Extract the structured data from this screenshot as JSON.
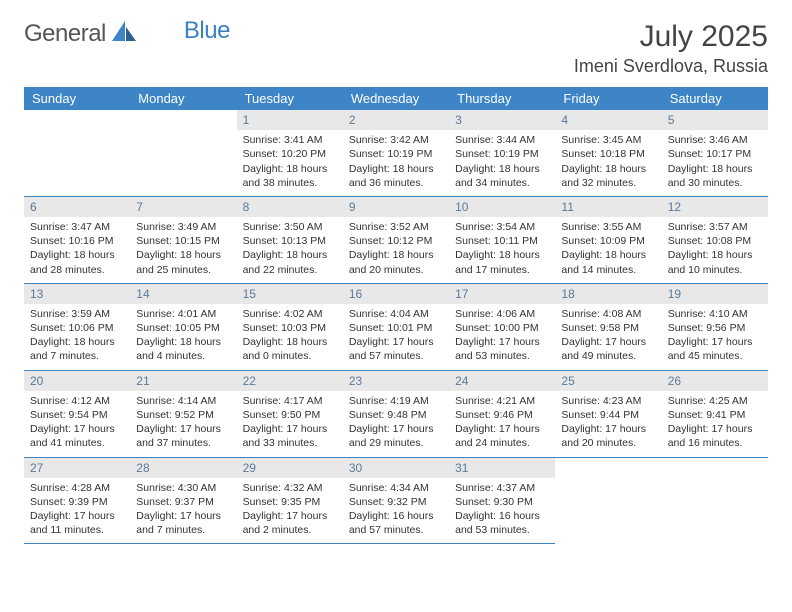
{
  "logo": {
    "text1": "General",
    "text2": "Blue"
  },
  "title": "July 2025",
  "location": "Imeni Sverdlova, Russia",
  "calendar": {
    "header_bg": "#3d85c6",
    "header_color": "#ffffff",
    "daynum_bg": "#e8e8e8",
    "daynum_color": "#5a7a9a",
    "border_color": "#3d85c6",
    "days_of_week": [
      "Sunday",
      "Monday",
      "Tuesday",
      "Wednesday",
      "Thursday",
      "Friday",
      "Saturday"
    ],
    "weeks": [
      [
        {
          "n": "",
          "sr": "",
          "ss": "",
          "dl1": "",
          "dl2": ""
        },
        {
          "n": "",
          "sr": "",
          "ss": "",
          "dl1": "",
          "dl2": ""
        },
        {
          "n": "1",
          "sr": "Sunrise: 3:41 AM",
          "ss": "Sunset: 10:20 PM",
          "dl1": "Daylight: 18 hours",
          "dl2": "and 38 minutes."
        },
        {
          "n": "2",
          "sr": "Sunrise: 3:42 AM",
          "ss": "Sunset: 10:19 PM",
          "dl1": "Daylight: 18 hours",
          "dl2": "and 36 minutes."
        },
        {
          "n": "3",
          "sr": "Sunrise: 3:44 AM",
          "ss": "Sunset: 10:19 PM",
          "dl1": "Daylight: 18 hours",
          "dl2": "and 34 minutes."
        },
        {
          "n": "4",
          "sr": "Sunrise: 3:45 AM",
          "ss": "Sunset: 10:18 PM",
          "dl1": "Daylight: 18 hours",
          "dl2": "and 32 minutes."
        },
        {
          "n": "5",
          "sr": "Sunrise: 3:46 AM",
          "ss": "Sunset: 10:17 PM",
          "dl1": "Daylight: 18 hours",
          "dl2": "and 30 minutes."
        }
      ],
      [
        {
          "n": "6",
          "sr": "Sunrise: 3:47 AM",
          "ss": "Sunset: 10:16 PM",
          "dl1": "Daylight: 18 hours",
          "dl2": "and 28 minutes."
        },
        {
          "n": "7",
          "sr": "Sunrise: 3:49 AM",
          "ss": "Sunset: 10:15 PM",
          "dl1": "Daylight: 18 hours",
          "dl2": "and 25 minutes."
        },
        {
          "n": "8",
          "sr": "Sunrise: 3:50 AM",
          "ss": "Sunset: 10:13 PM",
          "dl1": "Daylight: 18 hours",
          "dl2": "and 22 minutes."
        },
        {
          "n": "9",
          "sr": "Sunrise: 3:52 AM",
          "ss": "Sunset: 10:12 PM",
          "dl1": "Daylight: 18 hours",
          "dl2": "and 20 minutes."
        },
        {
          "n": "10",
          "sr": "Sunrise: 3:54 AM",
          "ss": "Sunset: 10:11 PM",
          "dl1": "Daylight: 18 hours",
          "dl2": "and 17 minutes."
        },
        {
          "n": "11",
          "sr": "Sunrise: 3:55 AM",
          "ss": "Sunset: 10:09 PM",
          "dl1": "Daylight: 18 hours",
          "dl2": "and 14 minutes."
        },
        {
          "n": "12",
          "sr": "Sunrise: 3:57 AM",
          "ss": "Sunset: 10:08 PM",
          "dl1": "Daylight: 18 hours",
          "dl2": "and 10 minutes."
        }
      ],
      [
        {
          "n": "13",
          "sr": "Sunrise: 3:59 AM",
          "ss": "Sunset: 10:06 PM",
          "dl1": "Daylight: 18 hours",
          "dl2": "and 7 minutes."
        },
        {
          "n": "14",
          "sr": "Sunrise: 4:01 AM",
          "ss": "Sunset: 10:05 PM",
          "dl1": "Daylight: 18 hours",
          "dl2": "and 4 minutes."
        },
        {
          "n": "15",
          "sr": "Sunrise: 4:02 AM",
          "ss": "Sunset: 10:03 PM",
          "dl1": "Daylight: 18 hours",
          "dl2": "and 0 minutes."
        },
        {
          "n": "16",
          "sr": "Sunrise: 4:04 AM",
          "ss": "Sunset: 10:01 PM",
          "dl1": "Daylight: 17 hours",
          "dl2": "and 57 minutes."
        },
        {
          "n": "17",
          "sr": "Sunrise: 4:06 AM",
          "ss": "Sunset: 10:00 PM",
          "dl1": "Daylight: 17 hours",
          "dl2": "and 53 minutes."
        },
        {
          "n": "18",
          "sr": "Sunrise: 4:08 AM",
          "ss": "Sunset: 9:58 PM",
          "dl1": "Daylight: 17 hours",
          "dl2": "and 49 minutes."
        },
        {
          "n": "19",
          "sr": "Sunrise: 4:10 AM",
          "ss": "Sunset: 9:56 PM",
          "dl1": "Daylight: 17 hours",
          "dl2": "and 45 minutes."
        }
      ],
      [
        {
          "n": "20",
          "sr": "Sunrise: 4:12 AM",
          "ss": "Sunset: 9:54 PM",
          "dl1": "Daylight: 17 hours",
          "dl2": "and 41 minutes."
        },
        {
          "n": "21",
          "sr": "Sunrise: 4:14 AM",
          "ss": "Sunset: 9:52 PM",
          "dl1": "Daylight: 17 hours",
          "dl2": "and 37 minutes."
        },
        {
          "n": "22",
          "sr": "Sunrise: 4:17 AM",
          "ss": "Sunset: 9:50 PM",
          "dl1": "Daylight: 17 hours",
          "dl2": "and 33 minutes."
        },
        {
          "n": "23",
          "sr": "Sunrise: 4:19 AM",
          "ss": "Sunset: 9:48 PM",
          "dl1": "Daylight: 17 hours",
          "dl2": "and 29 minutes."
        },
        {
          "n": "24",
          "sr": "Sunrise: 4:21 AM",
          "ss": "Sunset: 9:46 PM",
          "dl1": "Daylight: 17 hours",
          "dl2": "and 24 minutes."
        },
        {
          "n": "25",
          "sr": "Sunrise: 4:23 AM",
          "ss": "Sunset: 9:44 PM",
          "dl1": "Daylight: 17 hours",
          "dl2": "and 20 minutes."
        },
        {
          "n": "26",
          "sr": "Sunrise: 4:25 AM",
          "ss": "Sunset: 9:41 PM",
          "dl1": "Daylight: 17 hours",
          "dl2": "and 16 minutes."
        }
      ],
      [
        {
          "n": "27",
          "sr": "Sunrise: 4:28 AM",
          "ss": "Sunset: 9:39 PM",
          "dl1": "Daylight: 17 hours",
          "dl2": "and 11 minutes."
        },
        {
          "n": "28",
          "sr": "Sunrise: 4:30 AM",
          "ss": "Sunset: 9:37 PM",
          "dl1": "Daylight: 17 hours",
          "dl2": "and 7 minutes."
        },
        {
          "n": "29",
          "sr": "Sunrise: 4:32 AM",
          "ss": "Sunset: 9:35 PM",
          "dl1": "Daylight: 17 hours",
          "dl2": "and 2 minutes."
        },
        {
          "n": "30",
          "sr": "Sunrise: 4:34 AM",
          "ss": "Sunset: 9:32 PM",
          "dl1": "Daylight: 16 hours",
          "dl2": "and 57 minutes."
        },
        {
          "n": "31",
          "sr": "Sunrise: 4:37 AM",
          "ss": "Sunset: 9:30 PM",
          "dl1": "Daylight: 16 hours",
          "dl2": "and 53 minutes."
        },
        {
          "n": "",
          "sr": "",
          "ss": "",
          "dl1": "",
          "dl2": ""
        },
        {
          "n": "",
          "sr": "",
          "ss": "",
          "dl1": "",
          "dl2": ""
        }
      ]
    ]
  }
}
